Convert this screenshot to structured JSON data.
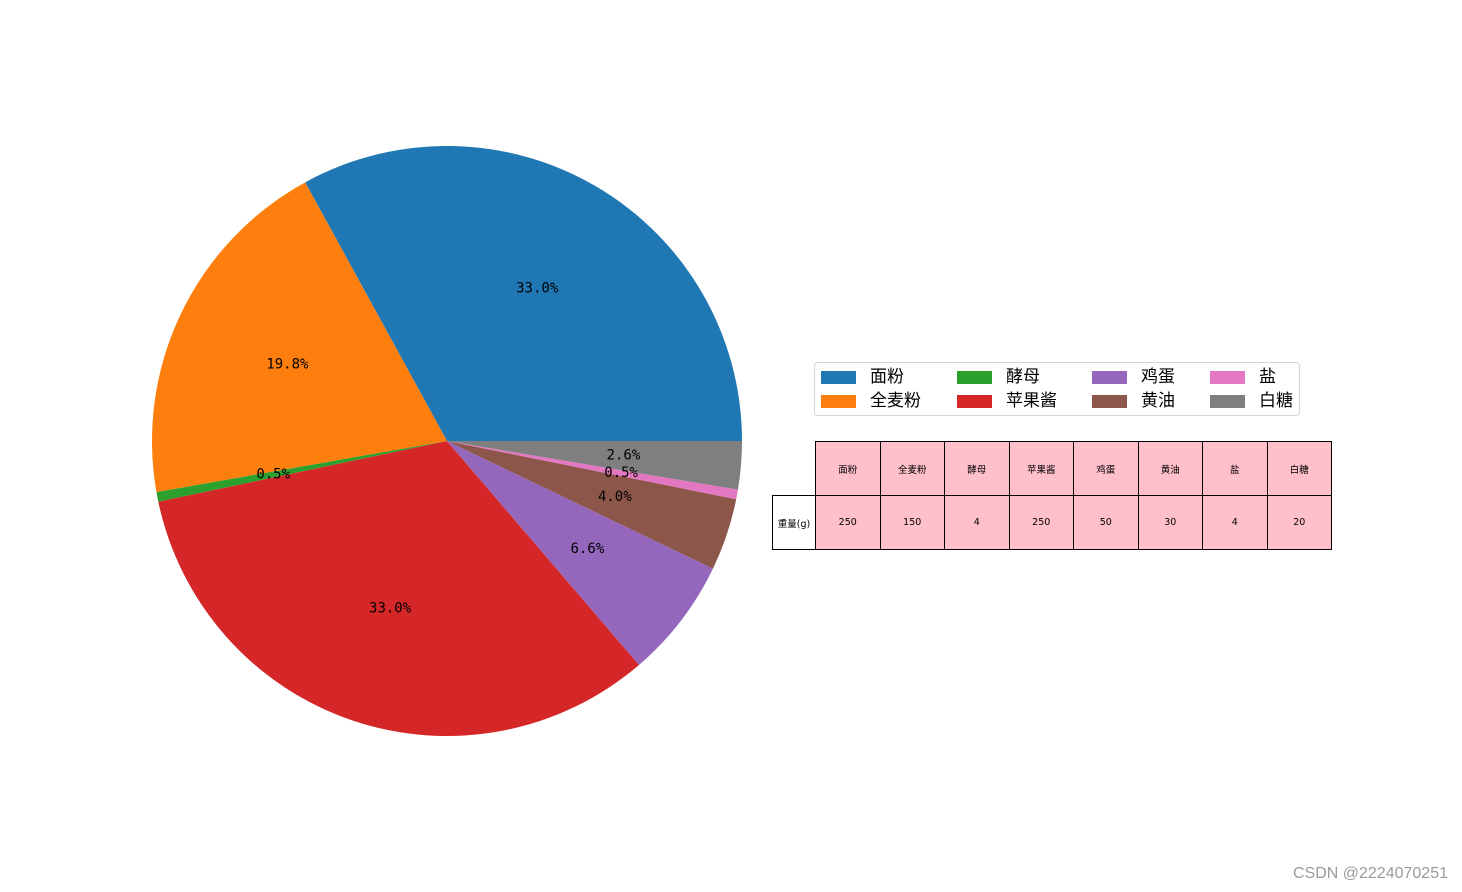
{
  "chart_data": {
    "type": "pie",
    "categories": [
      "面粉",
      "全麦粉",
      "酵母",
      "苹果酱",
      "鸡蛋",
      "黄油",
      "盐",
      "白糖"
    ],
    "values": [
      250,
      150,
      4,
      250,
      50,
      30,
      4,
      20
    ],
    "percent_labels": [
      "33.0%",
      "19.8%",
      "0.5%",
      "33.0%",
      "6.6%",
      "4.0%",
      "0.5%",
      "2.6%"
    ],
    "colors": [
      "#1f77b4",
      "#ff7f0e",
      "#2ca02c",
      "#d62728",
      "#9467bd",
      "#8c564b",
      "#e377c2",
      "#7f7f7f"
    ],
    "legend": {
      "placement": "center-right"
    }
  },
  "table": {
    "col_labels": [
      "面粉",
      "全麦粉",
      "酵母",
      "苹果酱",
      "鸡蛋",
      "黄油",
      "盐",
      "白糖"
    ],
    "row_label": "重量(g)",
    "cells": [
      "250",
      "150",
      "4",
      "250",
      "50",
      "30",
      "4",
      "20"
    ],
    "cell_color": "#ffc0cb"
  },
  "watermark": "CSDN @2224070251"
}
